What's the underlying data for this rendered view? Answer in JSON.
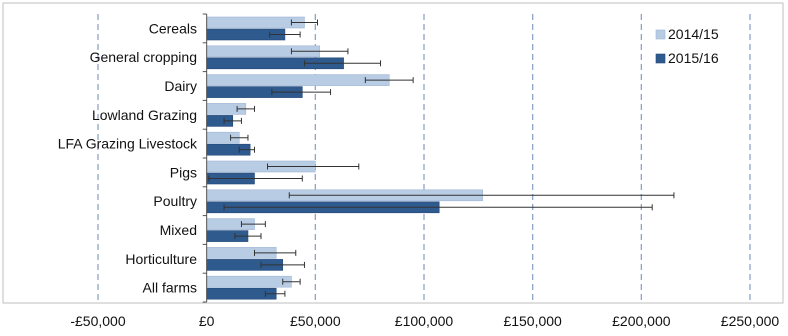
{
  "chart_data": {
    "type": "bar",
    "orientation": "horizontal",
    "categories": [
      "Cereals",
      "General cropping",
      "Dairy",
      "Lowland Grazing",
      "LFA Grazing Livestock",
      "Pigs",
      "Poultry",
      "Mixed",
      "Horticulture",
      "All farms"
    ],
    "series": [
      {
        "name": "2014/15",
        "color": "#b8cce4",
        "values": [
          45000,
          52000,
          84000,
          18000,
          15000,
          50000,
          127000,
          22000,
          32000,
          39000
        ],
        "error_low": [
          39000,
          39000,
          73000,
          14000,
          11000,
          28000,
          38000,
          16000,
          22000,
          35000
        ],
        "error_high": [
          51000,
          65000,
          95000,
          22000,
          19000,
          70000,
          215000,
          27000,
          41000,
          43000
        ]
      },
      {
        "name": "2015/16",
        "color": "#2e5a8e",
        "values": [
          36000,
          63000,
          44000,
          12000,
          20000,
          22000,
          107000,
          19000,
          35000,
          32000
        ],
        "error_low": [
          29000,
          45000,
          30000,
          8000,
          15000,
          1000,
          8000,
          13000,
          25000,
          27000
        ],
        "error_high": [
          43000,
          80000,
          57000,
          16000,
          22000,
          44000,
          205000,
          25000,
          45000,
          36000
        ]
      }
    ],
    "x_ticks": [
      "-£50,000",
      "£0",
      "£50,000",
      "£100,000",
      "£150,000",
      "£200,000",
      "£250,000"
    ],
    "x_tick_values": [
      -50000,
      0,
      50000,
      100000,
      150000,
      200000,
      250000
    ],
    "xlim": [
      -50000,
      250000
    ],
    "grid": "vertical dashed",
    "legend_position": "top-right"
  }
}
